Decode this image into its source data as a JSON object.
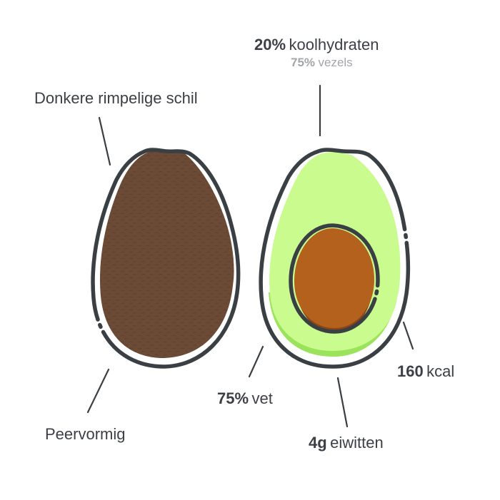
{
  "whole_avocado": {
    "skin_label": "Donkere rimpelige schil",
    "shape_label": "Peervormig"
  },
  "cut_avocado": {
    "carbs": {
      "value": "20%",
      "unit_text": "koolhydraten"
    },
    "fiber": {
      "value": "75%",
      "unit_text": "vezels"
    },
    "fat": {
      "value": "75%",
      "unit_text": "vet"
    },
    "protein": {
      "value": "4g",
      "unit_text": "eiwitten"
    },
    "energy": {
      "value": "160",
      "unit_text": "kcal"
    }
  },
  "colors": {
    "outline": "#3a3f44",
    "skin": "#6b4a36",
    "skin_texture": "#5f4030",
    "flesh": "#c9fb8e",
    "flesh_shade": "#9be35a",
    "pit": "#b3611c",
    "pit_shade": "#8a4614",
    "text": "#3c4045",
    "subtext": "#a3a5a8"
  },
  "icons": [
    "whole-avocado-icon",
    "halved-avocado-icon",
    "avocado-pit-icon"
  ]
}
